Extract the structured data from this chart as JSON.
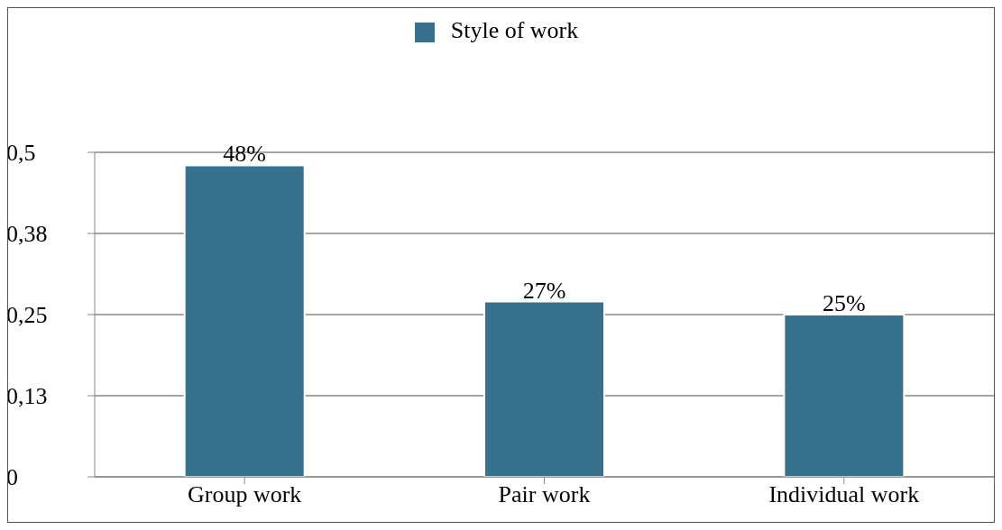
{
  "chart_data": {
    "type": "bar",
    "categories": [
      "Group work",
      "Pair work",
      "Individual work"
    ],
    "series": [
      {
        "name": "Style of work",
        "color": "#37718e",
        "values": [
          0.48,
          0.27,
          0.25
        ],
        "value_labels": [
          "48%",
          "27%",
          "25%"
        ]
      }
    ],
    "ylim": [
      0,
      0.5
    ],
    "yticks": [
      0,
      {
        "value": 0.125,
        "label": "0,13"
      },
      {
        "value": 0.25,
        "label": "0,25"
      },
      {
        "value": 0.375,
        "label": "0,38"
      },
      {
        "value": 0.5,
        "label": "0,5"
      }
    ],
    "grid": "y",
    "legend": "top"
  }
}
